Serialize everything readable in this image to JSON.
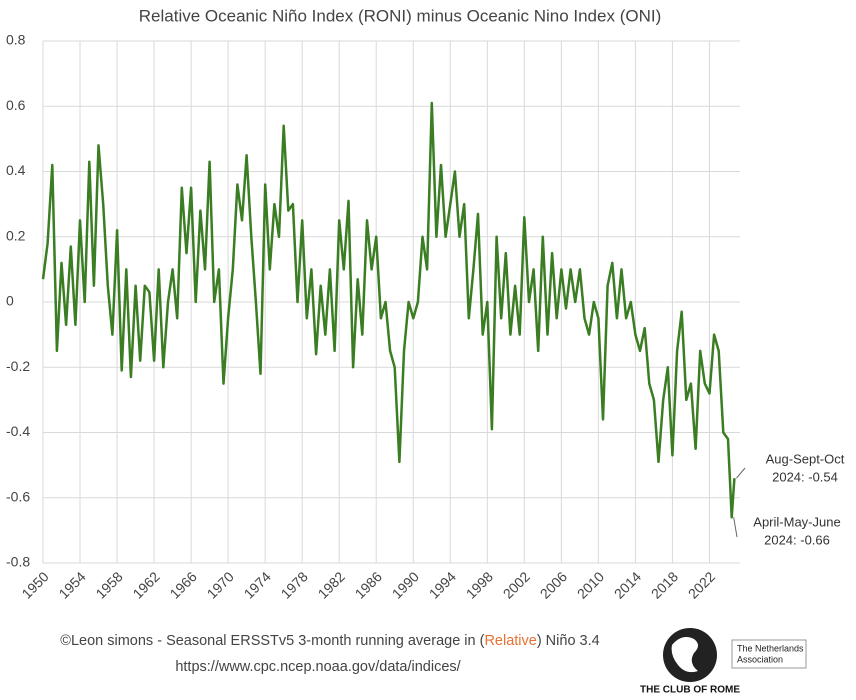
{
  "chart_data": {
    "type": "line",
    "title": "Relative Oceanic Niño Index (RONI) minus Oceanic Nino Index (ONI)",
    "x": [
      1950,
      1950.5,
      1951,
      1951.5,
      1952,
      1952.5,
      1953,
      1953.5,
      1954,
      1954.5,
      1955,
      1955.5,
      1956,
      1956.5,
      1957,
      1957.5,
      1958,
      1958.5,
      1959,
      1959.5,
      1960,
      1960.5,
      1961,
      1961.5,
      1962,
      1962.5,
      1963,
      1963.5,
      1964,
      1964.5,
      1965,
      1965.5,
      1966,
      1966.5,
      1967,
      1967.5,
      1968,
      1968.5,
      1969,
      1969.5,
      1970,
      1970.5,
      1971,
      1971.5,
      1972,
      1972.5,
      1973,
      1973.5,
      1974,
      1974.5,
      1975,
      1975.5,
      1976,
      1976.5,
      1977,
      1977.5,
      1978,
      1978.5,
      1979,
      1979.5,
      1980,
      1980.5,
      1981,
      1981.5,
      1982,
      1982.5,
      1983,
      1983.5,
      1984,
      1984.5,
      1985,
      1985.5,
      1986,
      1986.5,
      1987,
      1987.5,
      1988,
      1988.5,
      1989,
      1989.5,
      1990,
      1990.5,
      1991,
      1991.5,
      1992,
      1992.5,
      1993,
      1993.5,
      1994,
      1994.5,
      1995,
      1995.5,
      1996,
      1996.5,
      1997,
      1997.5,
      1998,
      1998.5,
      1999,
      1999.5,
      2000,
      2000.5,
      2001,
      2001.5,
      2002,
      2002.5,
      2003,
      2003.5,
      2004,
      2004.5,
      2005,
      2005.5,
      2006,
      2006.5,
      2007,
      2007.5,
      2008,
      2008.5,
      2009,
      2009.5,
      2010,
      2010.5,
      2011,
      2011.5,
      2012,
      2012.5,
      2013,
      2013.5,
      2014,
      2014.5,
      2015,
      2015.5,
      2016,
      2016.5,
      2017,
      2017.5,
      2018,
      2018.5,
      2019,
      2019.5,
      2020,
      2020.5,
      2021,
      2021.5,
      2022,
      2022.5,
      2023,
      2023.5,
      2024,
      2024.4,
      2024.7
    ],
    "series": [
      {
        "name": "RONI minus ONI",
        "color": "#3a7d22",
        "values": [
          0.07,
          0.18,
          0.42,
          -0.15,
          0.12,
          -0.07,
          0.17,
          -0.07,
          0.25,
          0.0,
          0.43,
          0.05,
          0.48,
          0.3,
          0.05,
          -0.1,
          0.22,
          -0.21,
          0.1,
          -0.23,
          0.05,
          -0.18,
          0.05,
          0.03,
          -0.18,
          0.1,
          -0.2,
          0.0,
          0.1,
          -0.05,
          0.35,
          0.15,
          0.35,
          0.0,
          0.28,
          0.1,
          0.43,
          0.0,
          0.1,
          -0.25,
          -0.05,
          0.1,
          0.36,
          0.25,
          0.45,
          0.2,
          0.0,
          -0.22,
          0.36,
          0.1,
          0.3,
          0.2,
          0.54,
          0.28,
          0.3,
          0.0,
          0.25,
          -0.05,
          0.1,
          -0.16,
          0.05,
          -0.1,
          0.1,
          -0.15,
          0.25,
          0.1,
          0.31,
          -0.2,
          0.07,
          -0.1,
          0.25,
          0.1,
          0.2,
          -0.05,
          0.0,
          -0.15,
          -0.2,
          -0.49,
          -0.15,
          0.0,
          -0.05,
          0.0,
          0.2,
          0.1,
          0.61,
          0.2,
          0.42,
          0.2,
          0.3,
          0.4,
          0.2,
          0.3,
          -0.05,
          0.1,
          0.27,
          -0.1,
          0.0,
          -0.39,
          0.2,
          -0.05,
          0.15,
          -0.1,
          0.05,
          -0.1,
          0.26,
          0.0,
          0.1,
          -0.15,
          0.2,
          -0.1,
          0.15,
          -0.05,
          0.1,
          -0.02,
          0.1,
          0.0,
          0.1,
          -0.05,
          -0.1,
          0.0,
          -0.05,
          -0.36,
          0.05,
          0.12,
          -0.05,
          0.1,
          -0.05,
          0.0,
          -0.1,
          -0.15,
          -0.08,
          -0.25,
          -0.3,
          -0.49,
          -0.3,
          -0.2,
          -0.47,
          -0.15,
          -0.03,
          -0.3,
          -0.25,
          -0.45,
          -0.15,
          -0.25,
          -0.28,
          -0.1,
          -0.15,
          -0.4,
          -0.42,
          -0.66,
          -0.54
        ]
      }
    ],
    "xlim": [
      1950,
      2025.3
    ],
    "xticks": [
      1950,
      1954,
      1958,
      1962,
      1966,
      1970,
      1974,
      1978,
      1982,
      1986,
      1990,
      1994,
      1998,
      2002,
      2006,
      2010,
      2014,
      2018,
      2022
    ],
    "ylim": [
      -0.8,
      0.8
    ],
    "yticks": [
      -0.8,
      -0.6,
      -0.4,
      -0.2,
      0,
      0.2,
      0.4,
      0.6,
      0.8
    ],
    "grid": true,
    "annotations": [
      {
        "lines": [
          "Aug-Sept-Oct",
          "2024: -0.54"
        ]
      },
      {
        "lines": [
          "April-May-June",
          "2024: -0.66"
        ]
      }
    ]
  },
  "footer": {
    "credit": [
      "©Leon simons - Seasonal ERSSTv5 3-month running average in (",
      "Relative",
      ") Niño 3.4"
    ],
    "url": "https://www.cpc.ncep.noaa.gov/data/indices/"
  },
  "logo": {
    "name": "THE CLUB OF ROME",
    "chapter": [
      "The Netherlands",
      "Association"
    ]
  }
}
